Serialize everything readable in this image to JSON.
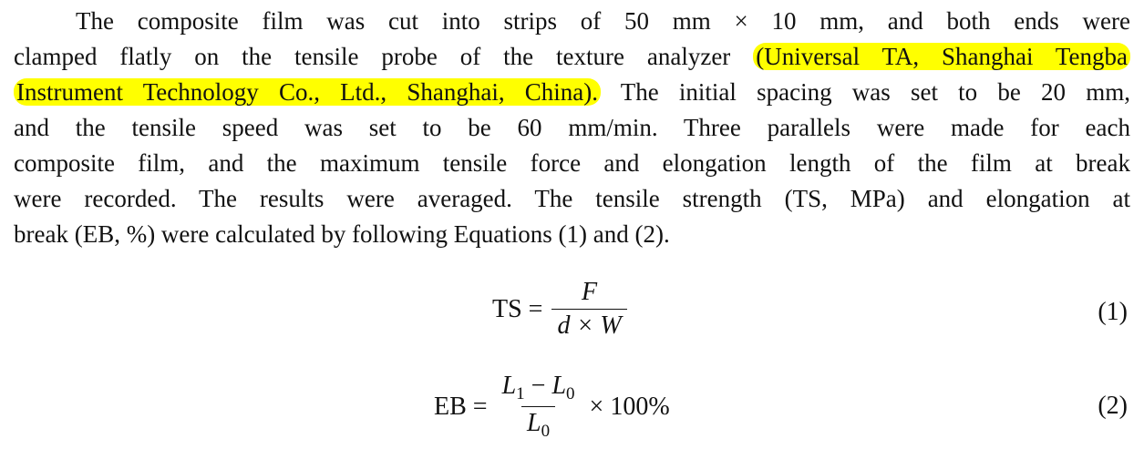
{
  "paragraph": {
    "lines": [
      "The composite film was cut into strips of 50 mm × 10 mm, and both ends were",
      "clamped flatly on the tensile probe of the texture analyzer",
      "The initial spacing was set to be 20 mm,",
      "and the tensile speed was set to be 60 mm/min.  Three parallels were made for each",
      "composite film, and the maximum tensile force and elongation length of the film at break",
      "were recorded. The results were averaged. The tensile strength (TS, MPa) and elongation at",
      "break (EB, %) were calculated by following Equations (1) and (2)."
    ],
    "highlight_part1": "(Universal TA, Shanghai Tengba",
    "highlight_part2": "Instrument Technology Co., Ltd., Shanghai, China).",
    "highlight_color": "#ffff00"
  },
  "equation1": {
    "lhs": "TS =",
    "numerator": "F",
    "denominator": "d × W",
    "number": "(1)"
  },
  "equation2": {
    "lhs": "EB =",
    "numerator_a": "L",
    "sub1": "1",
    "minus": " − ",
    "numerator_b": "L",
    "sub0": "0",
    "denominator": "L",
    "den_sub": "0",
    "factor": "× 100%",
    "number": "(2)"
  }
}
